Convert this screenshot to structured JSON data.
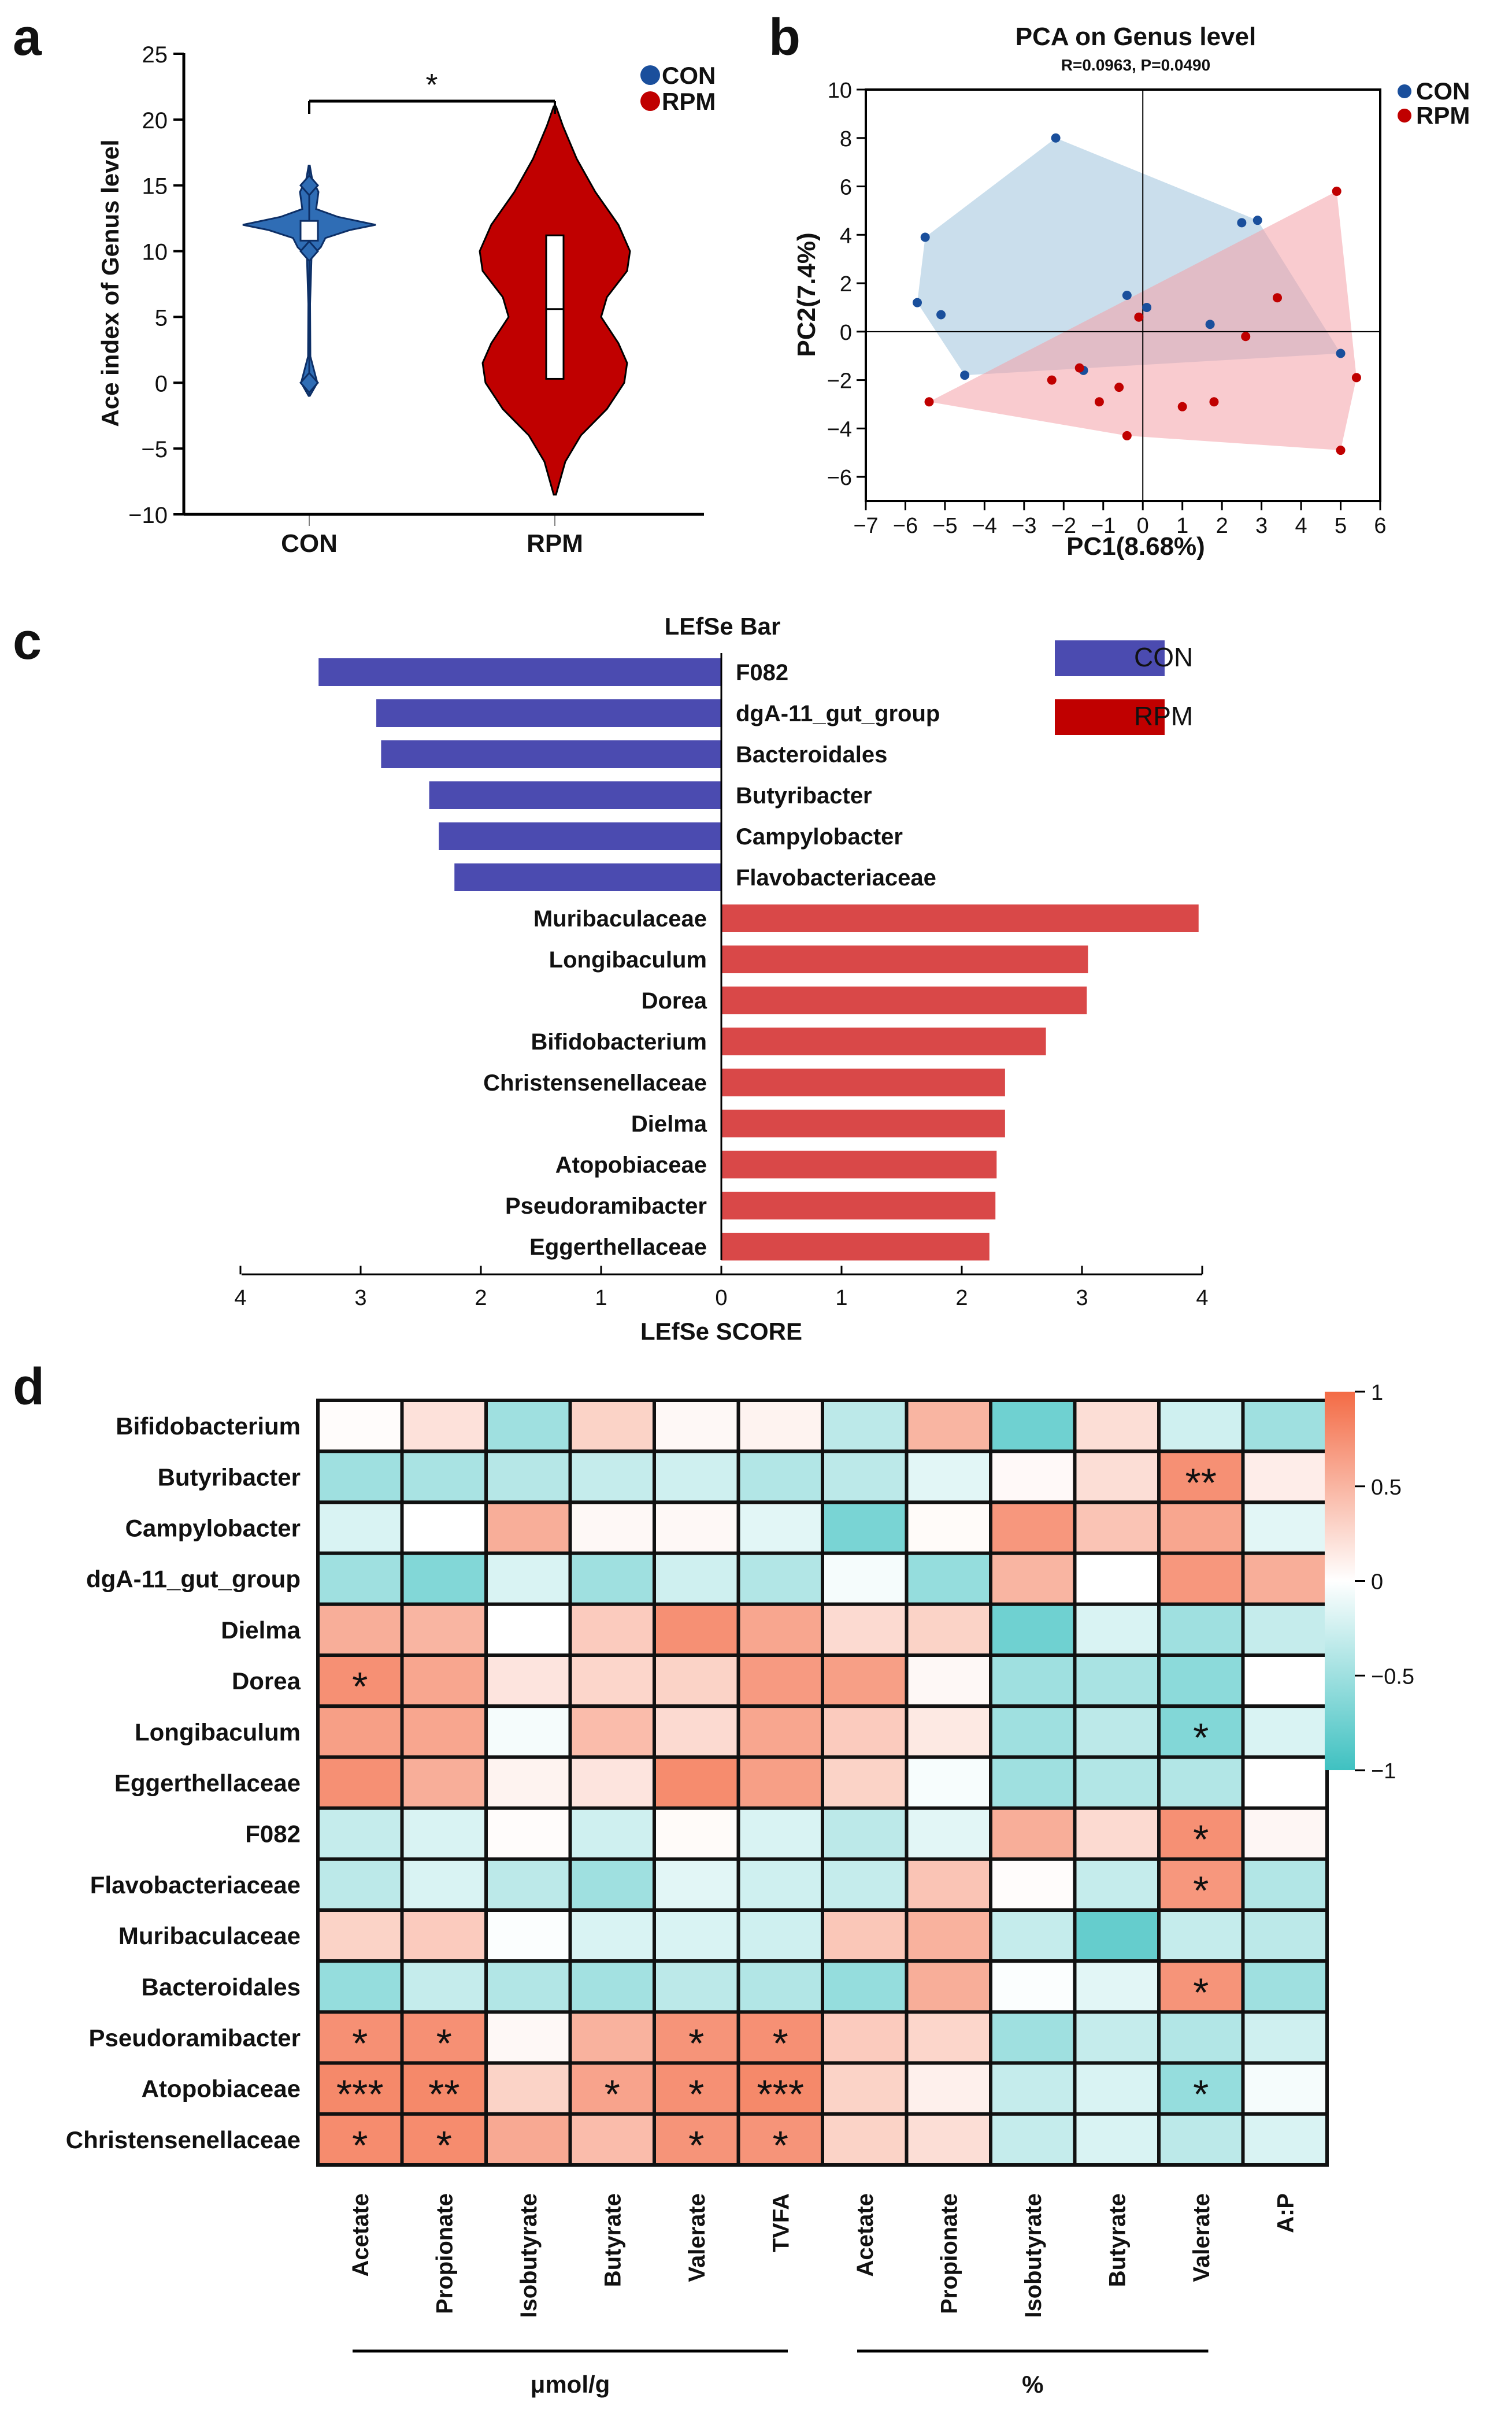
{
  "panel_labels": [
    "a",
    "b",
    "c",
    "d"
  ],
  "colors": {
    "con": "#1a4f9c",
    "con_fill": "#2f6db5",
    "rpm": "#c00000",
    "con_pca_fill": "#9fc3dc",
    "rpm_pca_fill": "#f4a0a8",
    "lefse_con": "#4b4bb0",
    "lefse_rpm": "#d94848",
    "heat_pos": "#f36b45",
    "heat_neg": "#3fc1c1"
  },
  "chart_data": [
    {
      "id": "a",
      "type": "violin",
      "ylabel": "Ace index of Genus level",
      "ylim": [
        -10,
        25
      ],
      "yticks": [
        "25",
        "20",
        "15",
        "10",
        "5",
        "0",
        "−5",
        "−10"
      ],
      "ytick_values": [
        25,
        20,
        15,
        10,
        5,
        0,
        -5,
        -10
      ],
      "categories": [
        "CON",
        "RPM"
      ],
      "legend": [
        "CON",
        "RPM"
      ],
      "significance": "*",
      "groups": [
        {
          "name": "CON",
          "min": -1,
          "max": 16.5,
          "q1": 10.8,
          "median": 11.5,
          "q3": 12,
          "points": [
            15,
            10,
            0
          ],
          "mean": 11.5
        },
        {
          "name": "RPM",
          "min": -8.5,
          "max": 21,
          "q1": 0.3,
          "median": 5.6,
          "q3": 11.2
        }
      ]
    },
    {
      "id": "b",
      "type": "scatter",
      "title": "PCA on Genus level",
      "subtitle": "R=0.0963, P=0.0490",
      "xlabel": "PC1(8.68%)",
      "ylabel": "PC2(7.4%)",
      "xlim": [
        -7,
        6
      ],
      "ylim": [
        -7,
        10
      ],
      "xticks": [
        "−7",
        "−6",
        "−5",
        "−4",
        "−3",
        "−2",
        "−1",
        "0",
        "1",
        "2",
        "3",
        "4",
        "5",
        "6"
      ],
      "xtick_values": [
        -7,
        -6,
        -5,
        -4,
        -3,
        -2,
        -1,
        0,
        1,
        2,
        3,
        4,
        5,
        6
      ],
      "yticks": [
        "10",
        "8",
        "6",
        "4",
        "2",
        "0",
        "−2",
        "−4",
        "−6"
      ],
      "ytick_values": [
        10,
        8,
        6,
        4,
        2,
        0,
        -2,
        -4,
        -6
      ],
      "legend": [
        "CON",
        "RPM"
      ],
      "series": [
        {
          "name": "CON",
          "points": [
            [
              -2.2,
              8.0
            ],
            [
              -5.5,
              3.9
            ],
            [
              2.5,
              4.5
            ],
            [
              2.9,
              4.6
            ],
            [
              -5.7,
              1.2
            ],
            [
              -5.1,
              0.7
            ],
            [
              -0.4,
              1.5
            ],
            [
              0.1,
              1.0
            ],
            [
              1.7,
              0.3
            ],
            [
              -4.5,
              -1.8
            ],
            [
              -1.5,
              -1.6
            ],
            [
              5.0,
              -0.9
            ]
          ]
        },
        {
          "name": "RPM",
          "points": [
            [
              4.9,
              5.8
            ],
            [
              3.4,
              1.4
            ],
            [
              -0.1,
              0.6
            ],
            [
              2.6,
              -0.2
            ],
            [
              -2.3,
              -2.0
            ],
            [
              -1.6,
              -1.5
            ],
            [
              -0.6,
              -2.3
            ],
            [
              -1.1,
              -2.9
            ],
            [
              1.0,
              -3.1
            ],
            [
              1.8,
              -2.9
            ],
            [
              -0.4,
              -4.3
            ],
            [
              -5.4,
              -2.9
            ],
            [
              5.4,
              -1.9
            ],
            [
              5.0,
              -4.9
            ]
          ]
        }
      ],
      "hulls": [
        {
          "name": "CON",
          "points": [
            [
              -2.2,
              8.0
            ],
            [
              2.9,
              4.6
            ],
            [
              5.0,
              -0.9
            ],
            [
              -4.5,
              -1.8
            ],
            [
              -5.7,
              1.2
            ],
            [
              -5.5,
              3.9
            ]
          ]
        },
        {
          "name": "RPM",
          "points": [
            [
              4.9,
              5.8
            ],
            [
              5.4,
              -1.9
            ],
            [
              5.0,
              -4.9
            ],
            [
              -0.4,
              -4.3
            ],
            [
              -5.4,
              -2.9
            ]
          ]
        }
      ]
    },
    {
      "id": "c",
      "type": "bar",
      "title": "LEfSe Bar",
      "xlabel": "LEfSe SCORE",
      "xticks": [
        "4",
        "3",
        "2",
        "1",
        "0",
        "1",
        "2",
        "3",
        "4"
      ],
      "xtick_values": [
        -4,
        -3,
        -2,
        -1,
        0,
        1,
        2,
        3,
        4
      ],
      "legend": [
        "CON",
        "RPM"
      ],
      "bars": [
        {
          "label": "F082",
          "group": "CON",
          "value": 3.35
        },
        {
          "label": "dgA-11_gut_group",
          "group": "CON",
          "value": 2.87
        },
        {
          "label": "Bacteroidales",
          "group": "CON",
          "value": 2.83
        },
        {
          "label": "Butyribacter",
          "group": "CON",
          "value": 2.43
        },
        {
          "label": "Campylobacter",
          "group": "CON",
          "value": 2.35
        },
        {
          "label": "Flavobacteriaceae",
          "group": "CON",
          "value": 2.22
        },
        {
          "label": "Muribaculaceae",
          "group": "RPM",
          "value": 3.97
        },
        {
          "label": "Longibaculum",
          "group": "RPM",
          "value": 3.05
        },
        {
          "label": "Dorea",
          "group": "RPM",
          "value": 3.04
        },
        {
          "label": "Bifidobacterium",
          "group": "RPM",
          "value": 2.7
        },
        {
          "label": "Christensenellaceae",
          "group": "RPM",
          "value": 2.36
        },
        {
          "label": "Dielma",
          "group": "RPM",
          "value": 2.36
        },
        {
          "label": "Atopobiaceae",
          "group": "RPM",
          "value": 2.29
        },
        {
          "label": "Pseudoramibacter",
          "group": "RPM",
          "value": 2.28
        },
        {
          "label": "Eggerthellaceae",
          "group": "RPM",
          "value": 2.23
        }
      ]
    },
    {
      "id": "d",
      "type": "heatmap",
      "rows": [
        "Bifidobacterium",
        "Butyribacter",
        "Campylobacter",
        "dgA-11_gut_group",
        "Dielma",
        "Dorea",
        "Longibaculum",
        "Eggerthellaceae",
        "F082",
        "Flavobacteriaceae",
        "Muribaculaceae",
        "Bacteroidales",
        "Pseudoramibacter",
        "Atopobiaceae",
        "Christensenellaceae"
      ],
      "columns": [
        "Acetate",
        "Propionate",
        "Isobutyrate",
        "Butyrate",
        "Valerate",
        "TVFA",
        "Acetate",
        "Propionate",
        "Isobutyrate",
        "Butyrate",
        "Valerate",
        "A:P"
      ],
      "column_groups": [
        {
          "label": "μmol/g",
          "span": [
            0,
            5
          ]
        },
        {
          "label": "%",
          "span": [
            6,
            10
          ]
        }
      ],
      "colorbar_ticks": [
        "1",
        "0.5",
        "0",
        "−0.5",
        "−1"
      ],
      "colorbar_values": [
        1,
        0.5,
        0,
        -0.5,
        -1
      ],
      "values": [
        [
          0.02,
          0.2,
          -0.5,
          0.3,
          0.05,
          0.08,
          -0.35,
          0.5,
          -0.75,
          0.22,
          -0.25,
          -0.5
        ],
        [
          -0.5,
          -0.45,
          -0.38,
          -0.3,
          -0.25,
          -0.4,
          -0.35,
          -0.15,
          0.04,
          0.22,
          0.75,
          0.12
        ],
        [
          -0.2,
          0.0,
          0.55,
          0.05,
          0.05,
          -0.15,
          -0.7,
          0.03,
          0.7,
          0.4,
          0.6,
          -0.15
        ],
        [
          -0.5,
          -0.65,
          -0.2,
          -0.5,
          -0.25,
          -0.4,
          -0.05,
          -0.55,
          0.5,
          0.0,
          0.7,
          0.55
        ],
        [
          0.55,
          0.5,
          0.0,
          0.35,
          0.75,
          0.6,
          0.25,
          0.3,
          -0.75,
          -0.2,
          -0.5,
          -0.3
        ],
        [
          0.75,
          0.6,
          0.18,
          0.28,
          0.3,
          0.68,
          0.65,
          0.05,
          -0.5,
          -0.45,
          -0.6,
          0.0
        ],
        [
          0.65,
          0.6,
          -0.05,
          0.45,
          0.25,
          0.6,
          0.35,
          0.15,
          -0.5,
          -0.35,
          -0.65,
          -0.2
        ],
        [
          0.75,
          0.55,
          0.08,
          0.18,
          0.78,
          0.65,
          0.3,
          -0.04,
          -0.5,
          -0.4,
          -0.4,
          0.0
        ],
        [
          -0.3,
          -0.2,
          0.02,
          -0.25,
          0.03,
          -0.2,
          -0.35,
          -0.15,
          0.55,
          0.25,
          0.75,
          0.06
        ],
        [
          -0.35,
          -0.2,
          -0.35,
          -0.5,
          -0.15,
          -0.25,
          -0.3,
          0.4,
          0.02,
          -0.3,
          0.7,
          -0.4
        ],
        [
          0.3,
          0.35,
          -0.02,
          -0.2,
          -0.2,
          -0.25,
          0.38,
          0.52,
          -0.3,
          -0.8,
          -0.3,
          -0.35
        ],
        [
          -0.55,
          -0.3,
          -0.4,
          -0.48,
          -0.35,
          -0.4,
          -0.55,
          0.55,
          -0.02,
          -0.15,
          0.72,
          -0.5
        ],
        [
          0.75,
          0.75,
          0.05,
          0.52,
          0.72,
          0.75,
          0.35,
          0.28,
          -0.5,
          -0.3,
          -0.4,
          -0.25
        ],
        [
          0.8,
          0.8,
          0.3,
          0.62,
          0.75,
          0.8,
          0.3,
          0.1,
          -0.3,
          -0.2,
          -0.55,
          -0.05
        ],
        [
          0.78,
          0.78,
          0.58,
          0.45,
          0.72,
          0.72,
          0.3,
          0.22,
          -0.3,
          -0.2,
          -0.35,
          -0.2
        ]
      ],
      "stars": [
        [
          "",
          "",
          "",
          "",
          "",
          "",
          "",
          "",
          "",
          "",
          "",
          ""
        ],
        [
          "",
          "",
          "",
          "",
          "",
          "",
          "",
          "",
          "",
          "",
          "**",
          ""
        ],
        [
          "",
          "",
          "",
          "",
          "",
          "",
          "",
          "",
          "",
          "",
          "",
          ""
        ],
        [
          "",
          "",
          "",
          "",
          "",
          "",
          "",
          "",
          "",
          "",
          "",
          ""
        ],
        [
          "",
          "",
          "",
          "",
          "",
          "",
          "",
          "",
          "",
          "",
          "",
          ""
        ],
        [
          "*",
          "",
          "",
          "",
          "",
          "",
          "",
          "",
          "",
          "",
          "",
          ""
        ],
        [
          "",
          "",
          "",
          "",
          "",
          "",
          "",
          "",
          "",
          "",
          "*",
          ""
        ],
        [
          "",
          "",
          "",
          "",
          "",
          "",
          "",
          "",
          "",
          "",
          "",
          ""
        ],
        [
          "",
          "",
          "",
          "",
          "",
          "",
          "",
          "",
          "",
          "",
          "*",
          ""
        ],
        [
          "",
          "",
          "",
          "",
          "",
          "",
          "",
          "",
          "",
          "",
          "*",
          ""
        ],
        [
          "",
          "",
          "",
          "",
          "",
          "",
          "",
          "",
          "",
          "",
          "",
          ""
        ],
        [
          "",
          "",
          "",
          "",
          "",
          "",
          "",
          "",
          "",
          "",
          "*",
          ""
        ],
        [
          "*",
          "*",
          "",
          "",
          "*",
          "*",
          "",
          "",
          "",
          "",
          "",
          ""
        ],
        [
          "***",
          "**",
          "",
          "*",
          "*",
          "***",
          "",
          "",
          "",
          "",
          "*",
          ""
        ],
        [
          "*",
          "*",
          "",
          "",
          "*",
          "*",
          "",
          "",
          "",
          "",
          "",
          ""
        ]
      ]
    }
  ]
}
